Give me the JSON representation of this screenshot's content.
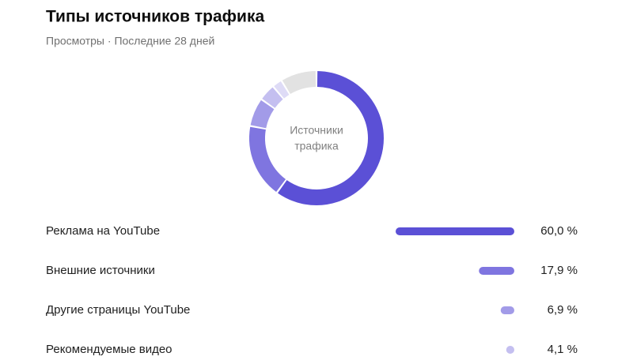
{
  "chart_data": {
    "type": "donut",
    "title": "Типы источников трафика",
    "subtitle": "Просмотры · Последние 28 дней",
    "center_label": [
      "Источники",
      "трафика"
    ],
    "categories": [
      "Реклама на YouTube",
      "Внешние источники",
      "Другие страницы YouTube",
      "Рекомендуемые видео",
      null,
      null
    ],
    "values": [
      60.0,
      17.9,
      6.9,
      4.1,
      2.4,
      8.7
    ],
    "value_labels": [
      "60,0 %",
      "17,9 %",
      "6,9 %",
      "4,1 %",
      null,
      null
    ],
    "colors": [
      "#5b50d6",
      "#7f75e0",
      "#a29be8",
      "#c4bff0",
      "#dedbf6",
      "#e2e2e2"
    ]
  }
}
